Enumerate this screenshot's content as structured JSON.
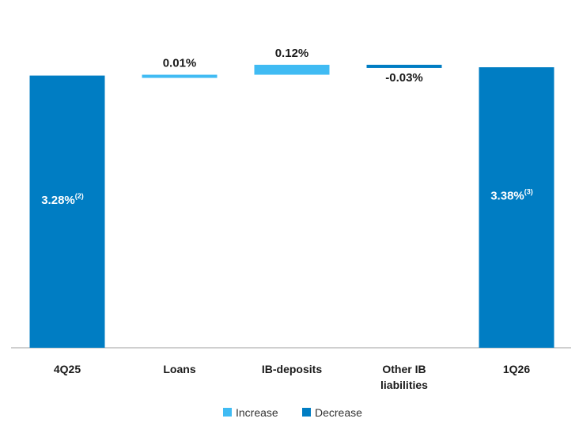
{
  "chart_data": {
    "type": "bar",
    "subtype": "waterfall",
    "categories": [
      "4Q25",
      "Loans",
      "IB-deposits",
      "Other IB liabilities",
      "1Q26"
    ],
    "category_lines": [
      [
        "4Q25"
      ],
      [
        "Loans"
      ],
      [
        "IB-deposits"
      ],
      [
        "Other IB",
        "liabilities"
      ],
      [
        "1Q26"
      ]
    ],
    "steps": [
      {
        "category": "4Q25",
        "kind": "total",
        "value": 3.28,
        "label": "3.28%",
        "note": "(2)"
      },
      {
        "category": "Loans",
        "kind": "increase",
        "value": 0.01,
        "label": "0.01%"
      },
      {
        "category": "IB-deposits",
        "kind": "increase",
        "value": 0.12,
        "label": "0.12%"
      },
      {
        "category": "Other IB liabilities",
        "kind": "decrease",
        "value": -0.03,
        "label": "-0.03%"
      },
      {
        "category": "1Q26",
        "kind": "total",
        "value": 3.38,
        "label": "3.38%",
        "note": "(3)"
      }
    ],
    "legend": {
      "position": "bottom-center",
      "items": [
        {
          "key": "increase",
          "label": "Increase",
          "color": "#40bbf3"
        },
        {
          "key": "decrease",
          "label": "Decrease",
          "color": "#007dc3"
        }
      ]
    },
    "colors": {
      "total": "#007dc3",
      "increase": "#40bbf3",
      "decrease": "#007dc3",
      "axis": "#bfbfbf"
    },
    "grid": false,
    "title": "",
    "xlabel": "",
    "ylabel": ""
  }
}
